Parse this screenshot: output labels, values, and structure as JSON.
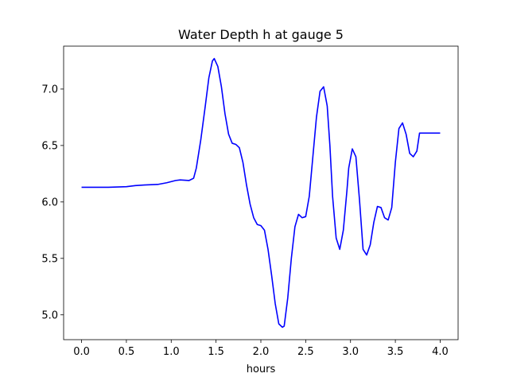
{
  "chart_data": {
    "type": "line",
    "title": "Water Depth h at gauge 5",
    "xlabel": "hours",
    "ylabel": "",
    "xlim": [
      -0.2,
      4.2
    ],
    "ylim": [
      4.78,
      7.38
    ],
    "xticks": [
      0.0,
      0.5,
      1.0,
      1.5,
      2.0,
      2.5,
      3.0,
      3.5,
      4.0
    ],
    "xtick_labels": [
      "0.0",
      "0.5",
      "1.0",
      "1.5",
      "2.0",
      "2.5",
      "3.0",
      "3.5",
      "4.0"
    ],
    "yticks": [
      5.0,
      5.5,
      6.0,
      6.5,
      7.0
    ],
    "ytick_labels": [
      "5.0",
      "5.5",
      "6.0",
      "6.5",
      "7.0"
    ],
    "grid": false,
    "legend": "none",
    "series": [
      {
        "color": "#0000ff",
        "x": [
          0.0,
          0.3,
          0.5,
          0.6,
          0.7,
          0.85,
          0.95,
          1.05,
          1.1,
          1.2,
          1.25,
          1.28,
          1.33,
          1.38,
          1.42,
          1.46,
          1.48,
          1.52,
          1.56,
          1.6,
          1.64,
          1.68,
          1.72,
          1.76,
          1.8,
          1.84,
          1.88,
          1.92,
          1.96,
          2.0,
          2.04,
          2.08,
          2.12,
          2.16,
          2.2,
          2.24,
          2.26,
          2.3,
          2.34,
          2.38,
          2.42,
          2.46,
          2.5,
          2.54,
          2.58,
          2.62,
          2.66,
          2.7,
          2.74,
          2.77,
          2.8,
          2.84,
          2.88,
          2.92,
          2.96,
          2.98,
          3.02,
          3.06,
          3.1,
          3.14,
          3.18,
          3.22,
          3.26,
          3.3,
          3.34,
          3.38,
          3.42,
          3.46,
          3.5,
          3.54,
          3.58,
          3.62,
          3.66,
          3.7,
          3.74,
          3.77,
          3.8,
          3.84,
          3.88,
          3.92,
          3.96,
          4.0
        ],
        "y": [
          6.13,
          6.13,
          6.135,
          6.145,
          6.15,
          6.155,
          6.17,
          6.19,
          6.195,
          6.19,
          6.21,
          6.3,
          6.55,
          6.85,
          7.1,
          7.25,
          7.27,
          7.2,
          7.02,
          6.78,
          6.6,
          6.52,
          6.51,
          6.48,
          6.35,
          6.15,
          5.98,
          5.86,
          5.8,
          5.79,
          5.75,
          5.58,
          5.35,
          5.1,
          4.92,
          4.89,
          4.9,
          5.15,
          5.5,
          5.78,
          5.89,
          5.86,
          5.87,
          6.05,
          6.4,
          6.75,
          6.98,
          7.02,
          6.85,
          6.5,
          6.05,
          5.68,
          5.58,
          5.75,
          6.1,
          6.3,
          6.47,
          6.4,
          6.02,
          5.58,
          5.53,
          5.62,
          5.82,
          5.96,
          5.95,
          5.86,
          5.84,
          5.95,
          6.35,
          6.65,
          6.7,
          6.6,
          6.43,
          6.4,
          6.45,
          6.61,
          6.61,
          6.61,
          6.61,
          6.61,
          6.61,
          6.61
        ]
      }
    ]
  }
}
